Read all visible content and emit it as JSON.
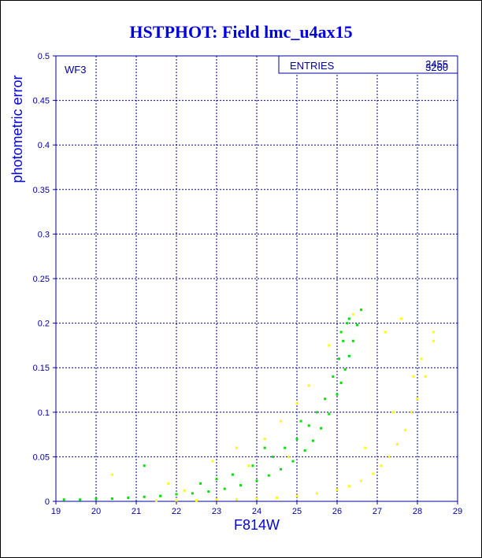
{
  "chart_data": {
    "type": "scatter",
    "title": "HSTPHOT: Field lmc_u4ax15",
    "xlabel": "F814W",
    "ylabel": "photometric error",
    "xlim": [
      19,
      29
    ],
    "ylim": [
      0,
      0.5
    ],
    "x_ticks": [
      "19",
      "20",
      "21",
      "22",
      "23",
      "24",
      "25",
      "26",
      "27",
      "28",
      "29"
    ],
    "y_ticks": [
      "0",
      "0.05",
      "0.1",
      "0.15",
      "0.2",
      "0.25",
      "0.3",
      "0.35",
      "0.4",
      "0.45",
      "0.5"
    ],
    "grid": true,
    "panel_label": "WF3",
    "stats_box": {
      "label": "ENTRIES",
      "values": [
        "2455",
        "3260"
      ]
    },
    "series": [
      {
        "color": "#00e000",
        "points": [
          [
            19.2,
            0.002
          ],
          [
            19.6,
            0.002
          ],
          [
            20.0,
            0.003
          ],
          [
            20.4,
            0.003
          ],
          [
            20.8,
            0.004
          ],
          [
            21.2,
            0.005
          ],
          [
            21.6,
            0.006
          ],
          [
            22.0,
            0.008
          ],
          [
            22.4,
            0.009
          ],
          [
            22.8,
            0.011
          ],
          [
            23.2,
            0.014
          ],
          [
            23.6,
            0.018
          ],
          [
            24.0,
            0.023
          ],
          [
            24.3,
            0.029
          ],
          [
            24.6,
            0.036
          ],
          [
            24.9,
            0.045
          ],
          [
            25.2,
            0.057
          ],
          [
            25.4,
            0.068
          ],
          [
            25.6,
            0.082
          ],
          [
            25.8,
            0.098
          ],
          [
            26.0,
            0.12
          ],
          [
            26.1,
            0.133
          ],
          [
            26.2,
            0.148
          ],
          [
            26.3,
            0.163
          ],
          [
            26.4,
            0.18
          ],
          [
            26.5,
            0.198
          ],
          [
            26.6,
            0.215
          ],
          [
            23.4,
            0.03
          ],
          [
            23.9,
            0.04
          ],
          [
            24.4,
            0.05
          ],
          [
            24.7,
            0.06
          ],
          [
            25.0,
            0.07
          ],
          [
            25.3,
            0.085
          ],
          [
            25.5,
            0.1
          ],
          [
            25.7,
            0.115
          ],
          [
            25.9,
            0.14
          ],
          [
            26.05,
            0.16
          ],
          [
            26.15,
            0.18
          ],
          [
            26.25,
            0.2
          ],
          [
            26.1,
            0.19
          ],
          [
            26.3,
            0.205
          ],
          [
            21.2,
            0.04
          ],
          [
            22.6,
            0.02
          ],
          [
            23.0,
            0.025
          ],
          [
            24.2,
            0.06
          ],
          [
            25.1,
            0.09
          ]
        ]
      },
      {
        "color": "#ffff00",
        "points": [
          [
            21.5,
            0.001
          ],
          [
            22.0,
            0.001
          ],
          [
            22.5,
            0.001
          ],
          [
            23.0,
            0.002
          ],
          [
            23.5,
            0.002
          ],
          [
            24.0,
            0.003
          ],
          [
            24.5,
            0.004
          ],
          [
            25.0,
            0.006
          ],
          [
            25.5,
            0.009
          ],
          [
            26.0,
            0.013
          ],
          [
            26.3,
            0.017
          ],
          [
            26.6,
            0.023
          ],
          [
            26.9,
            0.031
          ],
          [
            27.1,
            0.04
          ],
          [
            27.3,
            0.05
          ],
          [
            27.5,
            0.064
          ],
          [
            27.7,
            0.08
          ],
          [
            27.85,
            0.1
          ],
          [
            28.0,
            0.115
          ],
          [
            28.2,
            0.14
          ],
          [
            28.4,
            0.18
          ],
          [
            20.4,
            0.03
          ],
          [
            21.8,
            0.02
          ],
          [
            22.9,
            0.045
          ],
          [
            23.5,
            0.06
          ],
          [
            24.2,
            0.07
          ],
          [
            24.6,
            0.09
          ],
          [
            25.0,
            0.11
          ],
          [
            25.3,
            0.13
          ],
          [
            25.8,
            0.175
          ],
          [
            26.4,
            0.21
          ],
          [
            27.2,
            0.19
          ],
          [
            27.6,
            0.205
          ],
          [
            28.1,
            0.16
          ],
          [
            28.4,
            0.19
          ],
          [
            27.9,
            0.14
          ],
          [
            24.8,
            0.05
          ],
          [
            23.8,
            0.04
          ],
          [
            22.2,
            0.012
          ],
          [
            26.7,
            0.06
          ],
          [
            27.4,
            0.1
          ]
        ]
      }
    ]
  }
}
